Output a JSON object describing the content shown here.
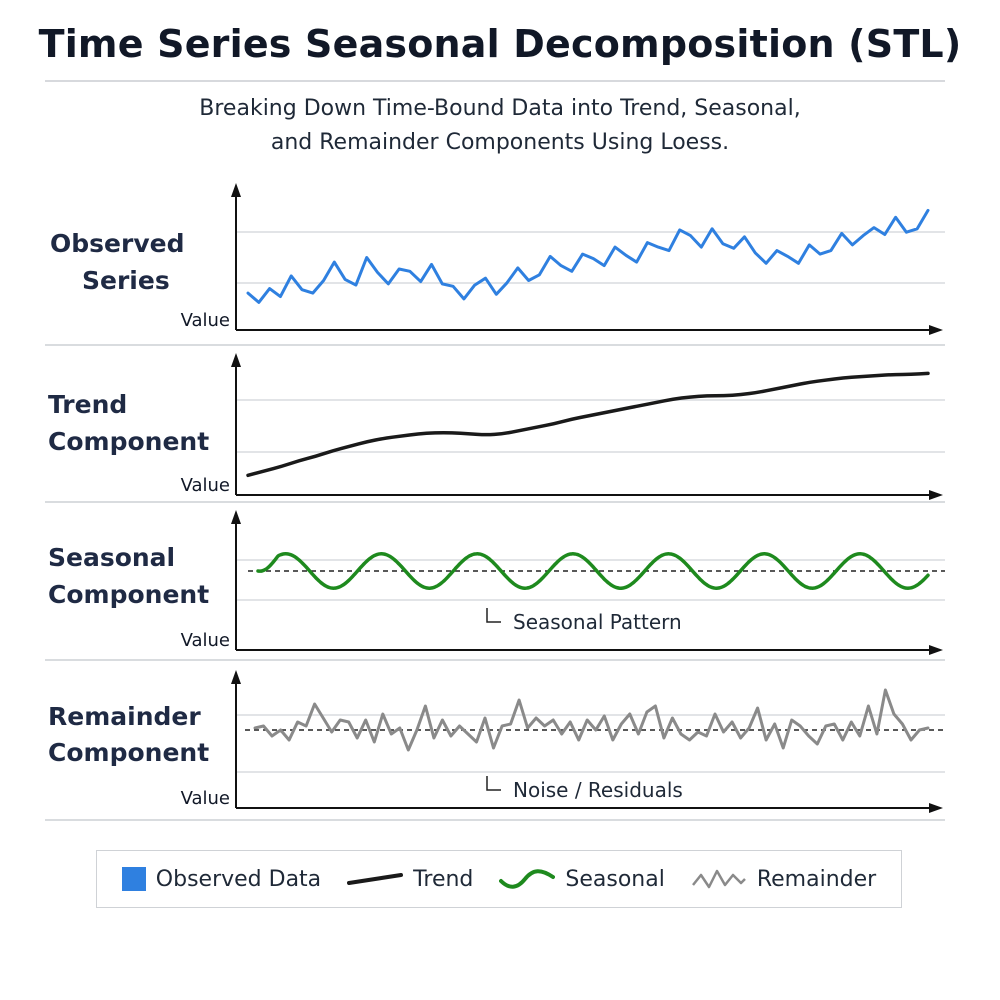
{
  "title": "Time Series Seasonal Decomposition (STL)",
  "subtitle_line1": "Breaking Down Time-Bound Data into Trend, Seasonal,",
  "subtitle_line2": "and Remainder Components Using Loess.",
  "colors": {
    "observed": "#2f80e0",
    "trend": "#1a1a1a",
    "seasonal": "#1e8a1e",
    "remainder": "#8a8a8a",
    "axis": "#111111",
    "grid": "#d9dcdf"
  },
  "chart_data": [
    {
      "type": "line",
      "panel_label": [
        "Observed",
        "Series"
      ],
      "ylabel": "Value",
      "ylim": [
        0,
        10
      ],
      "x": [
        0,
        1,
        2,
        3,
        4,
        5,
        6,
        7,
        8,
        9,
        10,
        11,
        12,
        13,
        14,
        15,
        16,
        17,
        18,
        19,
        20,
        21,
        22,
        23,
        24,
        25,
        26,
        27,
        28,
        29,
        30,
        31,
        32,
        33,
        34,
        35,
        36,
        37,
        38,
        39,
        40,
        41,
        42,
        43,
        44,
        45,
        46,
        47,
        48,
        49,
        50,
        51,
        52,
        53,
        54,
        55,
        56,
        57,
        58,
        59,
        60,
        61,
        62,
        63
      ],
      "series": [
        {
          "name": "Observed Data",
          "values": [
            1.9,
            1.1,
            2.3,
            1.6,
            3.4,
            2.2,
            1.9,
            3.0,
            4.6,
            3.1,
            2.6,
            5.0,
            3.7,
            2.7,
            4.0,
            3.8,
            2.9,
            4.4,
            2.7,
            2.5,
            1.4,
            2.6,
            3.2,
            1.8,
            2.8,
            4.1,
            3.0,
            3.5,
            5.1,
            4.3,
            3.8,
            5.3,
            4.9,
            4.3,
            5.9,
            5.2,
            4.6,
            6.3,
            5.9,
            5.6,
            7.4,
            6.9,
            5.9,
            7.5,
            6.2,
            5.8,
            6.8,
            5.4,
            4.5,
            5.6,
            5.1,
            4.5,
            6.1,
            5.3,
            5.6,
            7.1,
            6.1,
            6.9,
            7.6,
            7.0,
            8.5,
            7.2,
            7.5,
            9.1
          ]
        }
      ],
      "xlabel": ""
    },
    {
      "type": "line",
      "panel_label": [
        "Trend",
        "Component"
      ],
      "ylabel": "Value",
      "ylim": [
        0,
        10
      ],
      "x": [
        0,
        1,
        2,
        3,
        4,
        5,
        6,
        7,
        8,
        9,
        10,
        11,
        12,
        13,
        14,
        15,
        16,
        17,
        18,
        19,
        20,
        21,
        22,
        23,
        24,
        25,
        26,
        27,
        28,
        29,
        30,
        31,
        32,
        33,
        34,
        35,
        36,
        37,
        38,
        39,
        40
      ],
      "series": [
        {
          "name": "Trend",
          "values": [
            0.6,
            1.0,
            1.4,
            1.9,
            2.3,
            2.8,
            3.2,
            3.6,
            3.9,
            4.1,
            4.3,
            4.4,
            4.4,
            4.3,
            4.2,
            4.3,
            4.6,
            4.9,
            5.2,
            5.6,
            5.9,
            6.2,
            6.5,
            6.8,
            7.1,
            7.4,
            7.6,
            7.7,
            7.7,
            7.8,
            8.0,
            8.3,
            8.6,
            8.9,
            9.1,
            9.3,
            9.4,
            9.5,
            9.6,
            9.6,
            9.7
          ]
        }
      ],
      "xlabel": ""
    },
    {
      "type": "line",
      "panel_label": [
        "Seasonal",
        "Component"
      ],
      "ylabel": "Value",
      "ylim": [
        -1.8,
        1.8
      ],
      "baseline": 0,
      "annotation": "Seasonal Pattern",
      "cycles": 7,
      "series": [
        {
          "name": "Seasonal",
          "amplitude": 1.0,
          "period_points": 20
        }
      ],
      "xlabel": ""
    },
    {
      "type": "line",
      "panel_label": [
        "Remainder",
        "Component"
      ],
      "ylabel": "Value",
      "ylim": [
        -2,
        2
      ],
      "baseline": 0,
      "annotation": "Noise / Residuals",
      "x": [
        0,
        1,
        2,
        3,
        4,
        5,
        6,
        7,
        8,
        9,
        10,
        11,
        12,
        13,
        14,
        15,
        16,
        17,
        18,
        19,
        20,
        21,
        22,
        23,
        24,
        25,
        26,
        27,
        28,
        29,
        30,
        31,
        32,
        33,
        34,
        35,
        36,
        37,
        38,
        39,
        40,
        41,
        42,
        43,
        44,
        45,
        46,
        47,
        48,
        49,
        50,
        51,
        52,
        53,
        54,
        55,
        56,
        57,
        58,
        59,
        60,
        61,
        62,
        63,
        64,
        65,
        66,
        67,
        68,
        69,
        70,
        71,
        72,
        73,
        74,
        75,
        76,
        77,
        78,
        79
      ],
      "series": [
        {
          "name": "Remainder",
          "values": [
            0.1,
            0.2,
            -0.3,
            0.0,
            -0.5,
            0.4,
            0.2,
            1.3,
            0.6,
            -0.1,
            0.5,
            0.4,
            -0.4,
            0.5,
            -0.6,
            0.8,
            -0.2,
            0.1,
            -1.0,
            0.0,
            1.2,
            -0.4,
            0.5,
            -0.3,
            0.2,
            -0.2,
            -0.6,
            0.6,
            -0.9,
            0.2,
            0.3,
            1.5,
            0.1,
            0.6,
            0.2,
            0.5,
            -0.2,
            0.4,
            -0.5,
            0.5,
            0.0,
            0.7,
            -0.5,
            0.3,
            0.8,
            -0.2,
            0.9,
            1.2,
            -0.4,
            0.6,
            -0.2,
            -0.5,
            -0.1,
            -0.3,
            0.8,
            -0.1,
            0.4,
            -0.4,
            0.1,
            1.1,
            -0.5,
            0.3,
            -0.9,
            0.5,
            0.2,
            -0.3,
            -0.7,
            0.2,
            0.3,
            -0.5,
            0.4,
            -0.3,
            1.2,
            -0.2,
            2.0,
            0.8,
            0.3,
            -0.5,
            0.0,
            0.1
          ]
        }
      ],
      "xlabel": ""
    }
  ],
  "legend": [
    {
      "label": "Observed Data",
      "kind": "square",
      "color_key": "observed"
    },
    {
      "label": "Trend",
      "kind": "line",
      "color_key": "trend"
    },
    {
      "label": "Seasonal",
      "kind": "wave",
      "color_key": "seasonal"
    },
    {
      "label": "Remainder",
      "kind": "zigzag",
      "color_key": "remainder"
    }
  ]
}
